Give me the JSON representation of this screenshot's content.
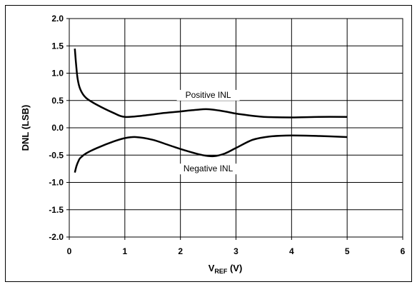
{
  "chart_data": {
    "type": "line",
    "ylabel": "DNL (LSB)",
    "xlabel_main": "V",
    "xlabel_sub": "REF",
    "xlabel_unit": " (V)",
    "xlim": [
      0,
      6
    ],
    "ylim": [
      -2.0,
      2.0
    ],
    "x_ticks": [
      "0",
      "1",
      "2",
      "3",
      "4",
      "5",
      "6"
    ],
    "y_ticks": [
      "2.0",
      "1.5",
      "1.0",
      "0.5",
      "0.0",
      "-0.5",
      "-1.0",
      "-1.5",
      "-2.0"
    ],
    "grid": true,
    "series": [
      {
        "label": "Positive INL",
        "x": [
          0.1,
          0.12,
          0.15,
          0.2,
          0.3,
          0.5,
          0.8,
          1.0,
          1.3,
          1.7,
          2.0,
          2.3,
          2.5,
          2.8,
          3.0,
          3.3,
          3.5,
          4.0,
          4.5,
          5.0
        ],
        "y": [
          1.45,
          1.2,
          0.9,
          0.7,
          0.55,
          0.42,
          0.27,
          0.2,
          0.22,
          0.27,
          0.3,
          0.33,
          0.34,
          0.3,
          0.26,
          0.22,
          0.2,
          0.19,
          0.2,
          0.2
        ]
      },
      {
        "label": "Negative INL",
        "x": [
          0.1,
          0.13,
          0.17,
          0.2,
          0.3,
          0.5,
          0.8,
          1.0,
          1.2,
          1.5,
          1.8,
          2.1,
          2.4,
          2.6,
          2.8,
          3.0,
          3.3,
          3.6,
          4.0,
          4.5,
          5.0
        ],
        "y": [
          -0.82,
          -0.7,
          -0.6,
          -0.55,
          -0.47,
          -0.37,
          -0.25,
          -0.19,
          -0.17,
          -0.22,
          -0.32,
          -0.42,
          -0.5,
          -0.52,
          -0.47,
          -0.37,
          -0.22,
          -0.16,
          -0.14,
          -0.15,
          -0.17
        ]
      }
    ],
    "annotations": [
      {
        "text": "Positive INL",
        "x": 2.5,
        "y": 0.55
      },
      {
        "text": "Negative INL",
        "x": 2.5,
        "y": -0.8
      }
    ]
  }
}
